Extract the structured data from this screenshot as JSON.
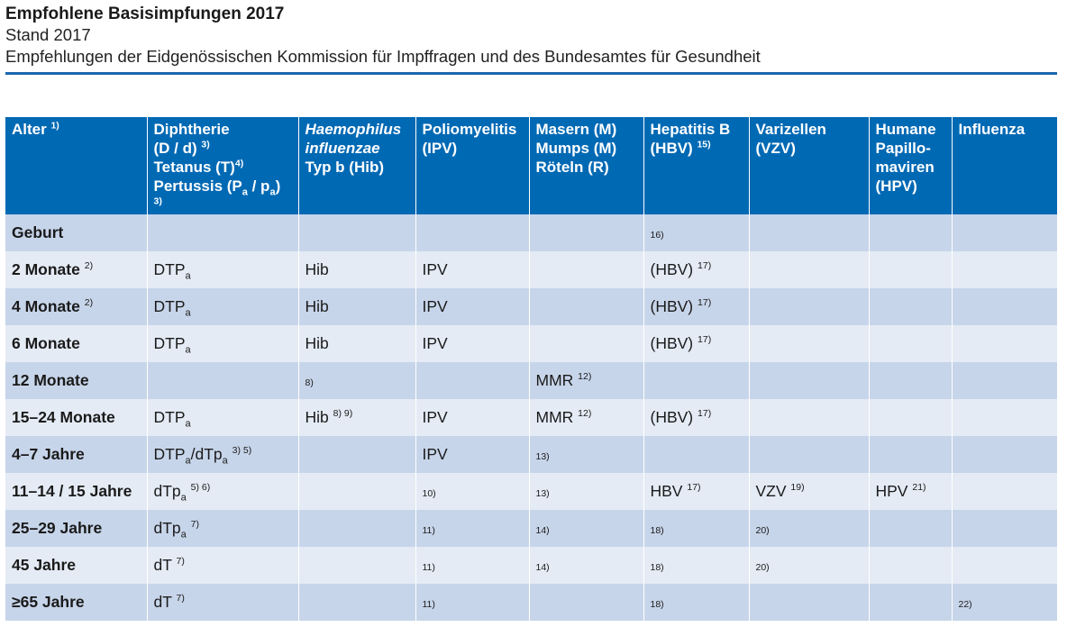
{
  "title": "Empfohlene Basisimpfungen 2017",
  "stand": "Stand 2017",
  "description": "Empfehlungen der Eidgenössischen Kommission für Impffragen und des Bundesamtes für Gesundheit",
  "headers": {
    "alter": "Alter",
    "alter_fn": "1)",
    "dtp": {
      "line1": "Diphtherie",
      "line2": "(D / d)",
      "line2_fn": "3)",
      "line3": "Tetanus (T)",
      "line3_fn": "4)",
      "line4a": "Pertussis (P",
      "sub_a": "a",
      "line4b": " / p",
      "line4c": ")",
      "line4_fn": "3)"
    },
    "hib": {
      "line1": "Haemophilus",
      "line2": "influenzae",
      "line3": "Typ b (Hib)"
    },
    "polio": {
      "line1": "Poliomyelitis",
      "line2": "(IPV)"
    },
    "mmr": {
      "line1": "Masern (M)",
      "line2": "Mumps (M)",
      "line3": "Röteln (R)"
    },
    "hbv": {
      "line1": "Hepatitis B",
      "line2": "(HBV)",
      "line2_fn": "15)"
    },
    "vzv": {
      "line1": "Varizellen",
      "line2": "(VZV)"
    },
    "hpv": {
      "line1": "Humane",
      "line2": "Papillo-",
      "line3": "maviren",
      "line4": "(HPV)"
    },
    "influenza": "Influenza"
  },
  "rows": [
    {
      "age": "Geburt",
      "age_fn": "",
      "dtp": "",
      "dtp_fn": "",
      "hib": "",
      "hib_fn": "",
      "polio": "",
      "polio_fn": "",
      "mmr": "",
      "mmr_fn": "",
      "hbv": "",
      "hbv_fn": "16)",
      "vzv": "",
      "vzv_fn": "",
      "hpv": "",
      "hpv_fn": "",
      "flu": "",
      "flu_fn": ""
    },
    {
      "age": "2 Monate",
      "age_fn": "2)",
      "dtp": "DTP",
      "dtp_sub": "a",
      "dtp_fn": "",
      "hib": "Hib",
      "hib_fn": "",
      "polio": "IPV",
      "polio_fn": "",
      "mmr": "",
      "mmr_fn": "",
      "hbv": "(HBV)",
      "hbv_fn": "17)",
      "vzv": "",
      "vzv_fn": "",
      "hpv": "",
      "hpv_fn": "",
      "flu": "",
      "flu_fn": ""
    },
    {
      "age": "4 Monate",
      "age_fn": "2)",
      "dtp": "DTP",
      "dtp_sub": "a",
      "dtp_fn": "",
      "hib": "Hib",
      "hib_fn": "",
      "polio": "IPV",
      "polio_fn": "",
      "mmr": "",
      "mmr_fn": "",
      "hbv": "(HBV)",
      "hbv_fn": "17)",
      "vzv": "",
      "vzv_fn": "",
      "hpv": "",
      "hpv_fn": "",
      "flu": "",
      "flu_fn": ""
    },
    {
      "age": "6 Monate",
      "age_fn": "",
      "dtp": "DTP",
      "dtp_sub": "a",
      "dtp_fn": "",
      "hib": "Hib",
      "hib_fn": "",
      "polio": "IPV",
      "polio_fn": "",
      "mmr": "",
      "mmr_fn": "",
      "hbv": "(HBV)",
      "hbv_fn": "17)",
      "vzv": "",
      "vzv_fn": "",
      "hpv": "",
      "hpv_fn": "",
      "flu": "",
      "flu_fn": ""
    },
    {
      "age": "12 Monate",
      "age_fn": "",
      "dtp": "",
      "dtp_fn": "",
      "hib": "",
      "hib_fn": "8)",
      "polio": "",
      "polio_fn": "",
      "mmr": "MMR",
      "mmr_fn": "12)",
      "hbv": "",
      "hbv_fn": "",
      "vzv": "",
      "vzv_fn": "",
      "hpv": "",
      "hpv_fn": "",
      "flu": "",
      "flu_fn": ""
    },
    {
      "age": "15–24 Monate",
      "age_fn": "",
      "dtp": "DTP",
      "dtp_sub": "a",
      "dtp_fn": "",
      "hib": "Hib",
      "hib_fn": "8) 9)",
      "polio": "IPV",
      "polio_fn": "",
      "mmr": "MMR",
      "mmr_fn": "12)",
      "hbv": "(HBV)",
      "hbv_fn": "17)",
      "vzv": "",
      "vzv_fn": "",
      "hpv": "",
      "hpv_fn": "",
      "flu": "",
      "flu_fn": ""
    },
    {
      "age": "4–7 Jahre",
      "age_fn": "",
      "dtp": "DTP",
      "dtp_sub": "a",
      "dtp_mid": "/dTp",
      "dtp_sub2": "a",
      "dtp_fn": "3) 5)",
      "hib": "",
      "hib_fn": "",
      "polio": "IPV",
      "polio_fn": "",
      "mmr": "",
      "mmr_fn": "13)",
      "hbv": "",
      "hbv_fn": "",
      "vzv": "",
      "vzv_fn": "",
      "hpv": "",
      "hpv_fn": "",
      "flu": "",
      "flu_fn": ""
    },
    {
      "age": "11–14 / 15 Jahre",
      "age_fn": "",
      "dtp": "dTp",
      "dtp_sub": "a",
      "dtp_fn": "5) 6)",
      "hib": "",
      "hib_fn": "",
      "polio": "",
      "polio_fn": "10)",
      "mmr": "",
      "mmr_fn": "13)",
      "hbv": "HBV",
      "hbv_fn": "17)",
      "vzv": "VZV",
      "vzv_fn": "19)",
      "hpv": "HPV",
      "hpv_fn": "21)",
      "flu": "",
      "flu_fn": ""
    },
    {
      "age": "25–29 Jahre",
      "age_fn": "",
      "dtp": "dTp",
      "dtp_sub": "a",
      "dtp_fn": "7)",
      "hib": "",
      "hib_fn": "",
      "polio": "",
      "polio_fn": "11)",
      "mmr": "",
      "mmr_fn": "14)",
      "hbv": "",
      "hbv_fn": "18)",
      "vzv": "",
      "vzv_fn": "20)",
      "hpv": "",
      "hpv_fn": "",
      "flu": "",
      "flu_fn": ""
    },
    {
      "age": "45 Jahre",
      "age_fn": "",
      "dtp": "dT",
      "dtp_fn": "7)",
      "hib": "",
      "hib_fn": "",
      "polio": "",
      "polio_fn": "11)",
      "mmr": "",
      "mmr_fn": "14)",
      "hbv": "",
      "hbv_fn": "18)",
      "vzv": "",
      "vzv_fn": "20)",
      "hpv": "",
      "hpv_fn": "",
      "flu": "",
      "flu_fn": ""
    },
    {
      "age": "≥65 Jahre",
      "age_fn": "",
      "dtp": "dT",
      "dtp_fn": "7)",
      "hib": "",
      "hib_fn": "",
      "polio": "",
      "polio_fn": "11)",
      "mmr": "",
      "mmr_fn": "",
      "hbv": "",
      "hbv_fn": "18)",
      "vzv": "",
      "vzv_fn": "",
      "hpv": "",
      "hpv_fn": "",
      "flu": "",
      "flu_fn": "22)"
    }
  ],
  "colors": {
    "header_bg": "#0069b4",
    "row_dark": "#c7d5ea",
    "row_light": "#e4ebf5",
    "rule": "#1b68b0"
  }
}
